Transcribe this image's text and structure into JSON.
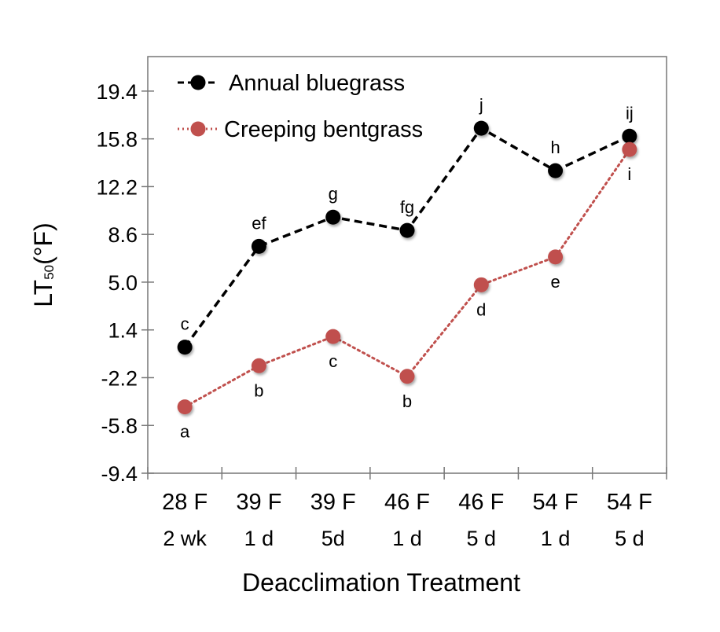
{
  "chart_data": {
    "type": "line",
    "title": "",
    "xlabel": "Deacclimation Treatment",
    "ylabel": "LT50(°F)",
    "ylabel_parts": {
      "main": "LT",
      "sub": "50",
      "unit": "(°F)"
    },
    "ylim": [
      -9.4,
      22.0
    ],
    "yticks": [
      -9.4,
      -5.8,
      -2.2,
      1.4,
      5.0,
      8.6,
      12.2,
      15.8,
      19.4
    ],
    "ytick_labels": [
      "-9.4",
      "-5.8",
      "-2.2",
      "1.4",
      "5.0",
      "8.6",
      "12.2",
      "15.8",
      "19.4"
    ],
    "categories": [
      "28 F 2 wk",
      "39 F 1 d",
      "39 F 5d",
      "46 F 1 d",
      "46 F 5 d",
      "54 F 1 d",
      "54 F 5 d"
    ],
    "category_lines": [
      [
        "28 F",
        "2 wk"
      ],
      [
        "39 F",
        "1 d"
      ],
      [
        "39 F",
        "5d"
      ],
      [
        "46 F",
        "1 d"
      ],
      [
        "46 F",
        "5 d"
      ],
      [
        "54 F",
        "1 d"
      ],
      [
        "54 F",
        "5 d"
      ]
    ],
    "grid": false,
    "legend_position": "top-left",
    "series": [
      {
        "name": "Annual bluegrass",
        "color": "#000000",
        "line_style": "dashed",
        "values": [
          0.1,
          7.7,
          9.9,
          8.9,
          16.6,
          13.4,
          16.0
        ],
        "letters": [
          "c",
          "ef",
          "g",
          "fg",
          "j",
          "h",
          "ij"
        ],
        "letter_position": "above"
      },
      {
        "name": "Creeping bentgrass",
        "color": "#C0504D",
        "line_style": "dotted",
        "values": [
          -4.4,
          -1.3,
          0.9,
          -2.1,
          4.8,
          6.9,
          15.0
        ],
        "letters": [
          "a",
          "b",
          "c",
          "b",
          "d",
          "e",
          "i"
        ],
        "letter_position": "below"
      }
    ]
  }
}
